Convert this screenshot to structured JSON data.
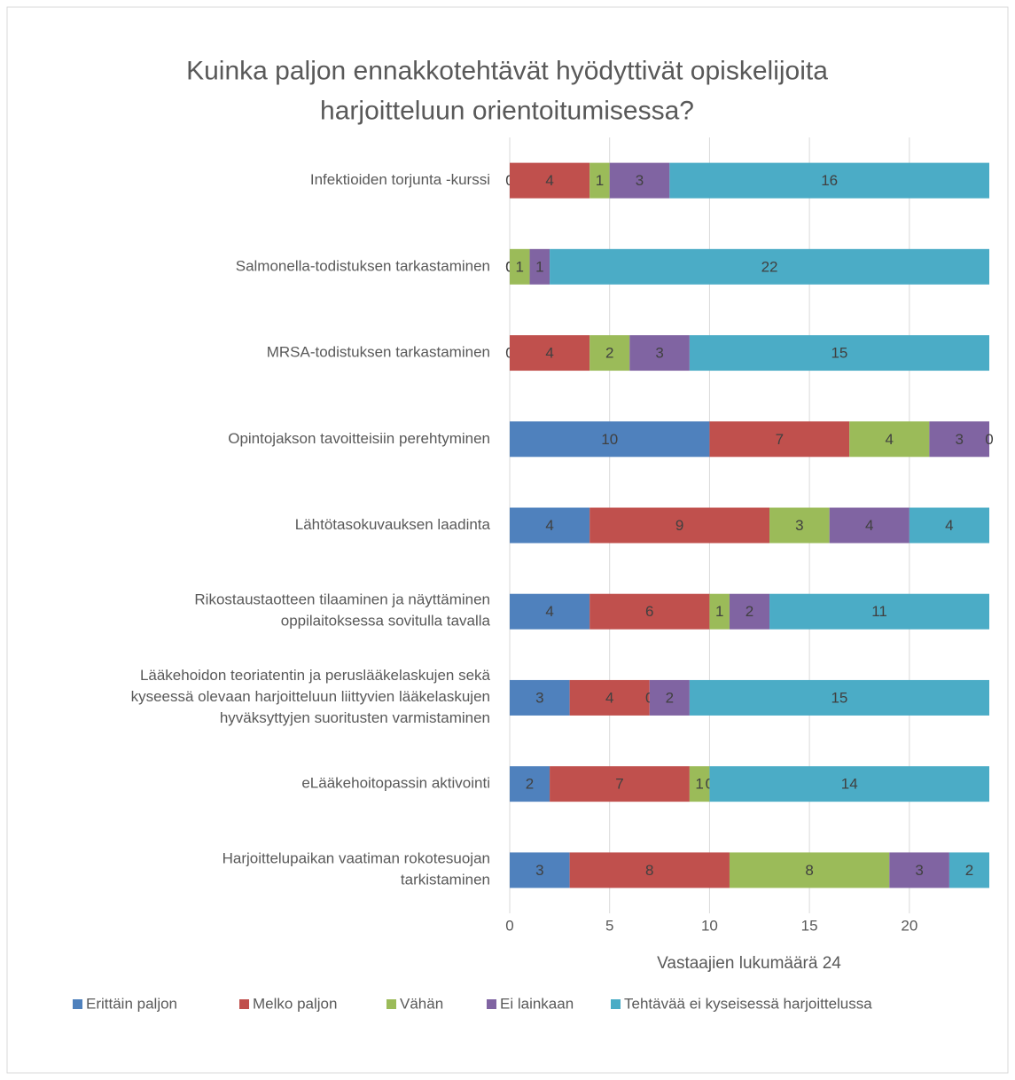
{
  "chart_data": {
    "type": "stacked_barh",
    "title": "Kuinka paljon ennakkotehtävät hyödyttivät opiskelijoita\nharjoitteluun orientoitumisessa?",
    "x_label": "Vastaajien lukumäärä 24",
    "categories": [
      "Infektioiden torjunta -kurssi",
      "Salmonella-todistuksen tarkastaminen",
      "MRSA-todistuksen tarkastaminen",
      "Opintojakson tavoitteisiin perehtyminen",
      "Lähtötasokuvauksen laadinta",
      "Rikostaustaotteen tilaaminen ja näyttäminen\noppilaitoksessa sovitulla tavalla",
      "Lääkehoidon teoriatentin ja peruslääkelaskujen sekä\nkyseessä olevaan harjoitteluun liittyvien lääkelaskujen\nhyväksyttyjen suoritusten varmistaminen",
      "eLääkehoitopassin aktivointi",
      "Harjoittelupaikan vaatiman rokotesuojan\ntarkistaminen"
    ],
    "series": [
      {
        "name": "Erittäin paljon",
        "color": "#4f81bd",
        "values": [
          0,
          0,
          0,
          10,
          4,
          4,
          3,
          2,
          3
        ]
      },
      {
        "name": "Melko paljon",
        "color": "#c0504d",
        "values": [
          4,
          0,
          4,
          7,
          9,
          6,
          4,
          7,
          8
        ]
      },
      {
        "name": "Vähän",
        "color": "#9bbb59",
        "values": [
          1,
          1,
          2,
          4,
          3,
          1,
          0,
          1,
          8
        ]
      },
      {
        "name": "Ei lainkaan",
        "color": "#8064a2",
        "values": [
          3,
          1,
          3,
          3,
          4,
          2,
          2,
          0,
          3
        ]
      },
      {
        "name": "Tehtävää ei kyseisessä harjoittelussa",
        "color": "#4bacc6",
        "values": [
          16,
          22,
          15,
          0,
          4,
          11,
          15,
          14,
          2
        ]
      }
    ],
    "xlim": [
      0,
      24
    ],
    "xticks": [
      0,
      5,
      10,
      15,
      20
    ],
    "grid": true,
    "legend": "bottom"
  }
}
